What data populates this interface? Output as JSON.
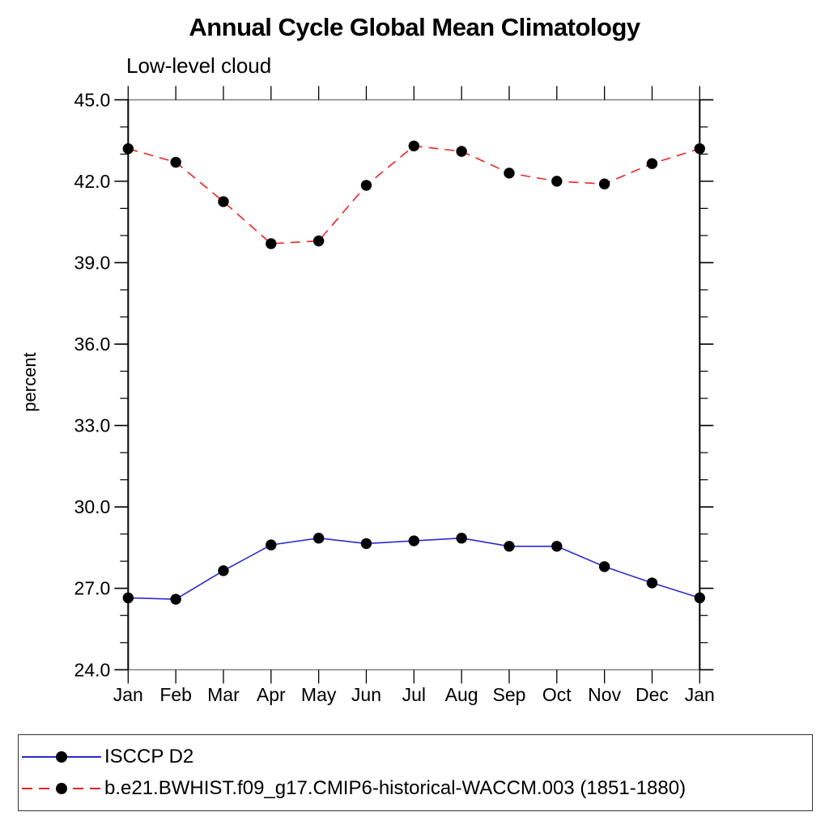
{
  "chart_data": {
    "type": "line",
    "title": "Annual Cycle Global Mean Climatology",
    "subtitle": "Low-level cloud",
    "xlabel": "",
    "ylabel": "percent",
    "categories": [
      "Jan",
      "Feb",
      "Mar",
      "Apr",
      "May",
      "Jun",
      "Jul",
      "Aug",
      "Sep",
      "Oct",
      "Nov",
      "Dec",
      "Jan"
    ],
    "ylim": [
      24.0,
      45.0
    ],
    "ytick_major_interval": 3.0,
    "ytick_minor_interval": 1.0,
    "ytick_labels": [
      "24.0",
      "27.0",
      "30.0",
      "33.0",
      "36.0",
      "39.0",
      "42.0",
      "45.0"
    ],
    "grid": false,
    "legend_position": "bottom",
    "axis_color": "#000000",
    "frame_color": "#777777",
    "series": [
      {
        "name": "ISCCP D2",
        "color": "#2a2ad2",
        "line_style": "solid",
        "marker": "filled-circle",
        "marker_color": "#000000",
        "values": [
          26.65,
          26.6,
          27.65,
          28.6,
          28.85,
          28.65,
          28.75,
          28.85,
          28.55,
          28.55,
          27.8,
          27.2,
          26.65
        ]
      },
      {
        "name": "b.e21.BWHIST.f09_g17.CMIP6-historical-WACCM.003 (1851-1880)",
        "color": "#ee2222",
        "line_style": "dashed",
        "marker": "filled-circle",
        "marker_color": "#000000",
        "values": [
          43.2,
          42.7,
          41.25,
          39.7,
          39.8,
          41.85,
          43.3,
          43.1,
          42.3,
          42.0,
          41.9,
          42.65,
          43.2
        ]
      }
    ]
  }
}
